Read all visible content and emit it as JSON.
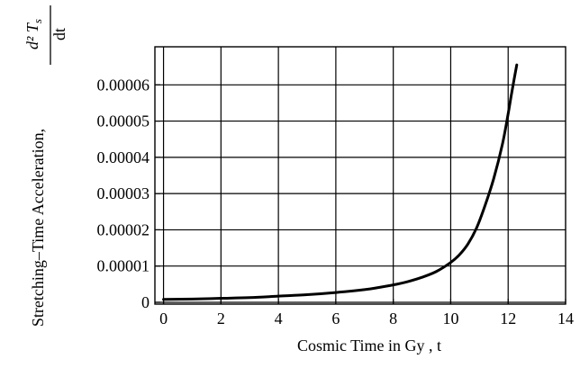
{
  "chart_data": {
    "type": "line",
    "xlabel": "Cosmic Time in Gy , t",
    "ylabel": "Stretching–Time Acceleration,",
    "ylabel_fraction": {
      "numerator": "d² T",
      "subscript": "s",
      "denominator": "dt"
    },
    "xlim": [
      -0.3,
      14
    ],
    "ylim": [
      -5e-07,
      7.05e-05
    ],
    "x_ticks": [
      0,
      2,
      4,
      6,
      8,
      10,
      12,
      14
    ],
    "x_tick_labels": [
      "0",
      "2",
      "4",
      "6",
      "8",
      "10",
      "12",
      "14"
    ],
    "y_ticks": [
      0,
      1e-05,
      2e-05,
      3e-05,
      4e-05,
      5e-05,
      6e-05
    ],
    "y_tick_labels": [
      "0",
      "0.00001",
      "0.00002",
      "0.00003",
      "0.00004",
      "0.00005",
      "0.00006"
    ],
    "grid": true,
    "series": [
      {
        "color": "#000000",
        "x": [
          0,
          1,
          2,
          3,
          4,
          5,
          6,
          7,
          7.5,
          8,
          8.5,
          9,
          9.5,
          10,
          10.3,
          10.6,
          10.9,
          11.2,
          11.5,
          11.8,
          12.0,
          12.1,
          12.2,
          12.3
        ],
        "y": [
          8e-07,
          9e-07,
          1.1e-06,
          1.3e-06,
          1.7e-06,
          2.1e-06,
          2.7e-06,
          3.5e-06,
          4.1e-06,
          4.8e-06,
          5.7e-06,
          6.9e-06,
          8.5e-06,
          1.1e-05,
          1.31e-05,
          1.61e-05,
          2.05e-05,
          2.68e-05,
          3.42e-05,
          4.36e-05,
          5.2e-05,
          5.67e-05,
          6.12e-05,
          6.55e-05
        ]
      }
    ]
  }
}
